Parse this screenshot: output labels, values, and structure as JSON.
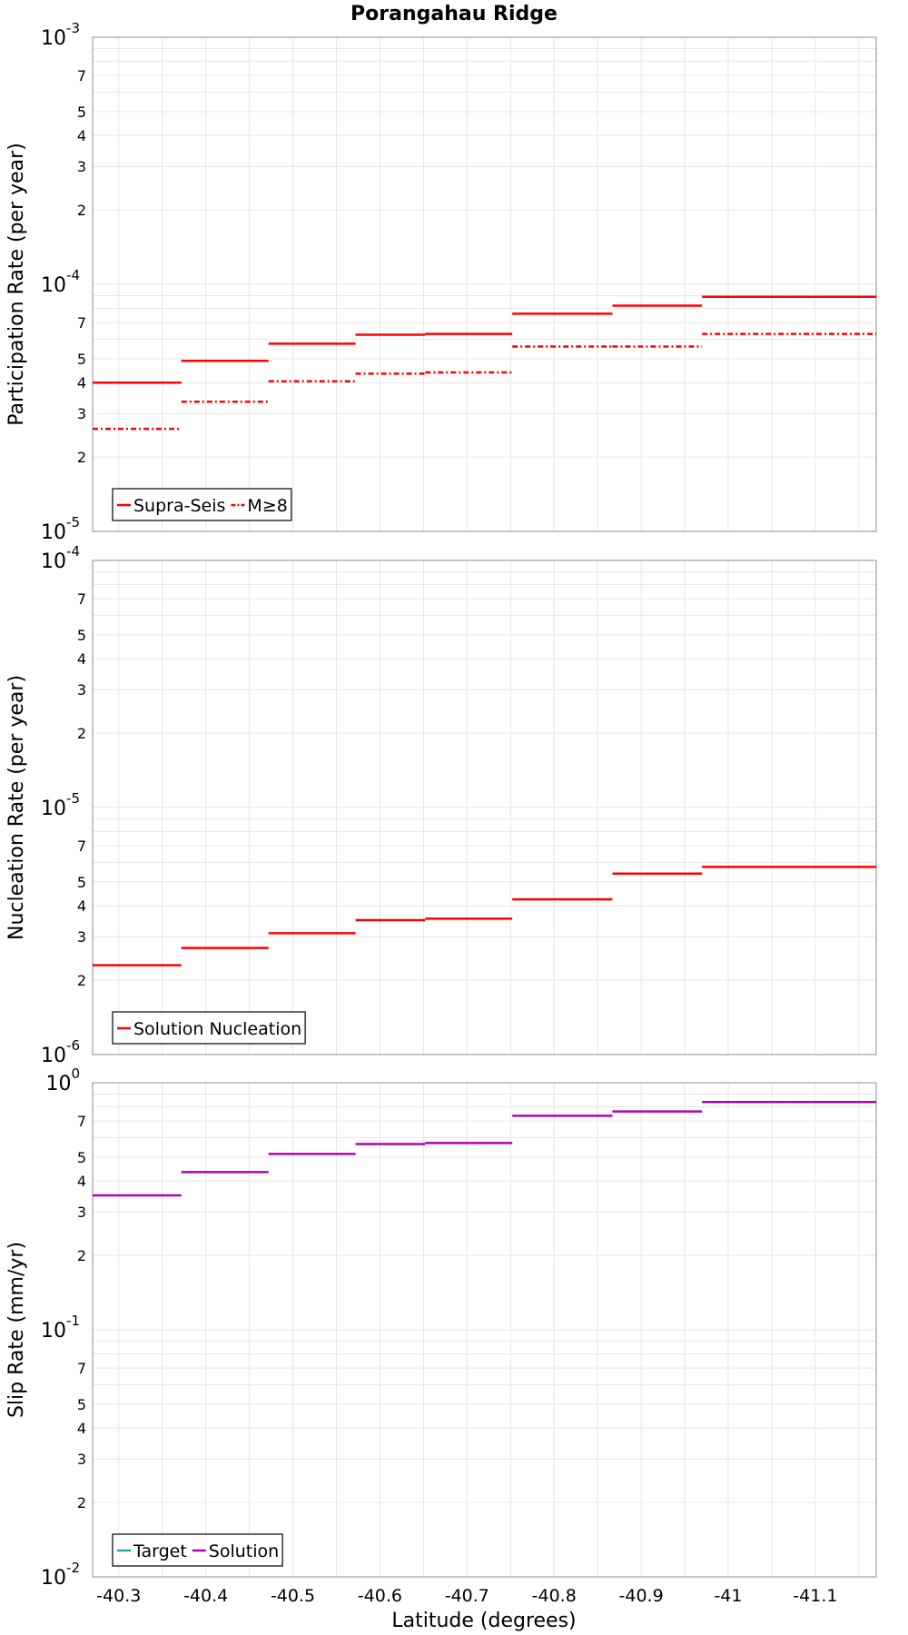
{
  "title": "Porangahau Ridge",
  "xlabel": "Latitude (degrees)",
  "x_tick_labels": [
    "-40.3",
    "-40.4",
    "-40.5",
    "-40.6",
    "-40.7",
    "-40.8",
    "-40.9",
    "-41",
    "-41.1"
  ],
  "colors": {
    "red": "#ff0000",
    "magenta": "#b300b3",
    "teal": "#1aa9a9",
    "grid": "#e6e6e6",
    "frame": "#b3b3b3"
  },
  "chart_data": [
    {
      "type": "line",
      "ylabel": "Participation Rate (per year)",
      "xlim": [
        -40.27,
        -41.17
      ],
      "ylim": [
        1e-05,
        0.001
      ],
      "y_scale": "log",
      "grid": true,
      "legend_position": "bottom-left",
      "step_edges": [
        -40.27,
        -40.372,
        -40.472,
        -40.572,
        -40.652,
        -40.752,
        -40.867,
        -40.97,
        -41.072,
        -41.17
      ],
      "series": [
        {
          "name": "Supra-Seis",
          "style": "solid",
          "color": "#ff0000",
          "values": [
            4e-05,
            4.9e-05,
            5.75e-05,
            6.25e-05,
            6.3e-05,
            7.6e-05,
            8.2e-05,
            8.9e-05,
            8.9e-05
          ]
        },
        {
          "name": "M≥8",
          "style": "dash-dot",
          "color": "#ff0000",
          "values": [
            2.6e-05,
            3.35e-05,
            4.05e-05,
            4.35e-05,
            4.4e-05,
            5.6e-05,
            5.6e-05,
            6.3e-05,
            6.3e-05
          ]
        }
      ],
      "y_ticks": [
        {
          "base": "10",
          "exp": "-3"
        },
        {
          "base": "7"
        },
        {
          "base": "5"
        },
        {
          "base": "4"
        },
        {
          "base": "3"
        },
        {
          "base": "2"
        },
        {
          "base": "10",
          "exp": "-4"
        },
        {
          "base": "7"
        },
        {
          "base": "5"
        },
        {
          "base": "4"
        },
        {
          "base": "3"
        },
        {
          "base": "2"
        },
        {
          "base": "10",
          "exp": "-5"
        }
      ]
    },
    {
      "type": "line",
      "ylabel": "Nucleation Rate (per year)",
      "xlim": [
        -40.27,
        -41.17
      ],
      "ylim": [
        1e-06,
        0.0001
      ],
      "y_scale": "log",
      "grid": true,
      "legend_position": "bottom-left",
      "step_edges": [
        -40.27,
        -40.372,
        -40.472,
        -40.572,
        -40.652,
        -40.752,
        -40.867,
        -40.97,
        -41.072,
        -41.17
      ],
      "series": [
        {
          "name": "Solution Nucleation",
          "style": "solid",
          "color": "#ff0000",
          "values": [
            2.3e-06,
            2.7e-06,
            3.1e-06,
            3.5e-06,
            3.55e-06,
            4.25e-06,
            5.4e-06,
            5.75e-06,
            5.75e-06
          ]
        }
      ],
      "y_ticks": [
        {
          "base": "10",
          "exp": "-4"
        },
        {
          "base": "7"
        },
        {
          "base": "5"
        },
        {
          "base": "4"
        },
        {
          "base": "3"
        },
        {
          "base": "2"
        },
        {
          "base": "10",
          "exp": "-5"
        },
        {
          "base": "7"
        },
        {
          "base": "5"
        },
        {
          "base": "4"
        },
        {
          "base": "3"
        },
        {
          "base": "2"
        },
        {
          "base": "10",
          "exp": "-6"
        }
      ]
    },
    {
      "type": "line",
      "ylabel": "Slip Rate (mm/yr)",
      "xlim": [
        -40.27,
        -41.17
      ],
      "ylim": [
        0.01,
        1
      ],
      "y_scale": "log",
      "grid": true,
      "legend_position": "bottom-left",
      "step_edges": [
        -40.27,
        -40.372,
        -40.472,
        -40.572,
        -40.652,
        -40.752,
        -40.867,
        -40.97,
        -41.072,
        -41.17
      ],
      "series": [
        {
          "name": "Target",
          "style": "solid",
          "color": "#1aa9a9",
          "values": []
        },
        {
          "name": "Solution",
          "style": "solid",
          "color": "#b300b3",
          "values": [
            0.35,
            0.435,
            0.515,
            0.565,
            0.57,
            0.735,
            0.765,
            0.835,
            0.835
          ]
        }
      ],
      "y_ticks": [
        {
          "base": "10",
          "exp": "0"
        },
        {
          "base": "7"
        },
        {
          "base": "5"
        },
        {
          "base": "4"
        },
        {
          "base": "3"
        },
        {
          "base": "2"
        },
        {
          "base": "10",
          "exp": "-1"
        },
        {
          "base": "7"
        },
        {
          "base": "5"
        },
        {
          "base": "4"
        },
        {
          "base": "3"
        },
        {
          "base": "2"
        },
        {
          "base": "10",
          "exp": "-2"
        }
      ]
    }
  ]
}
